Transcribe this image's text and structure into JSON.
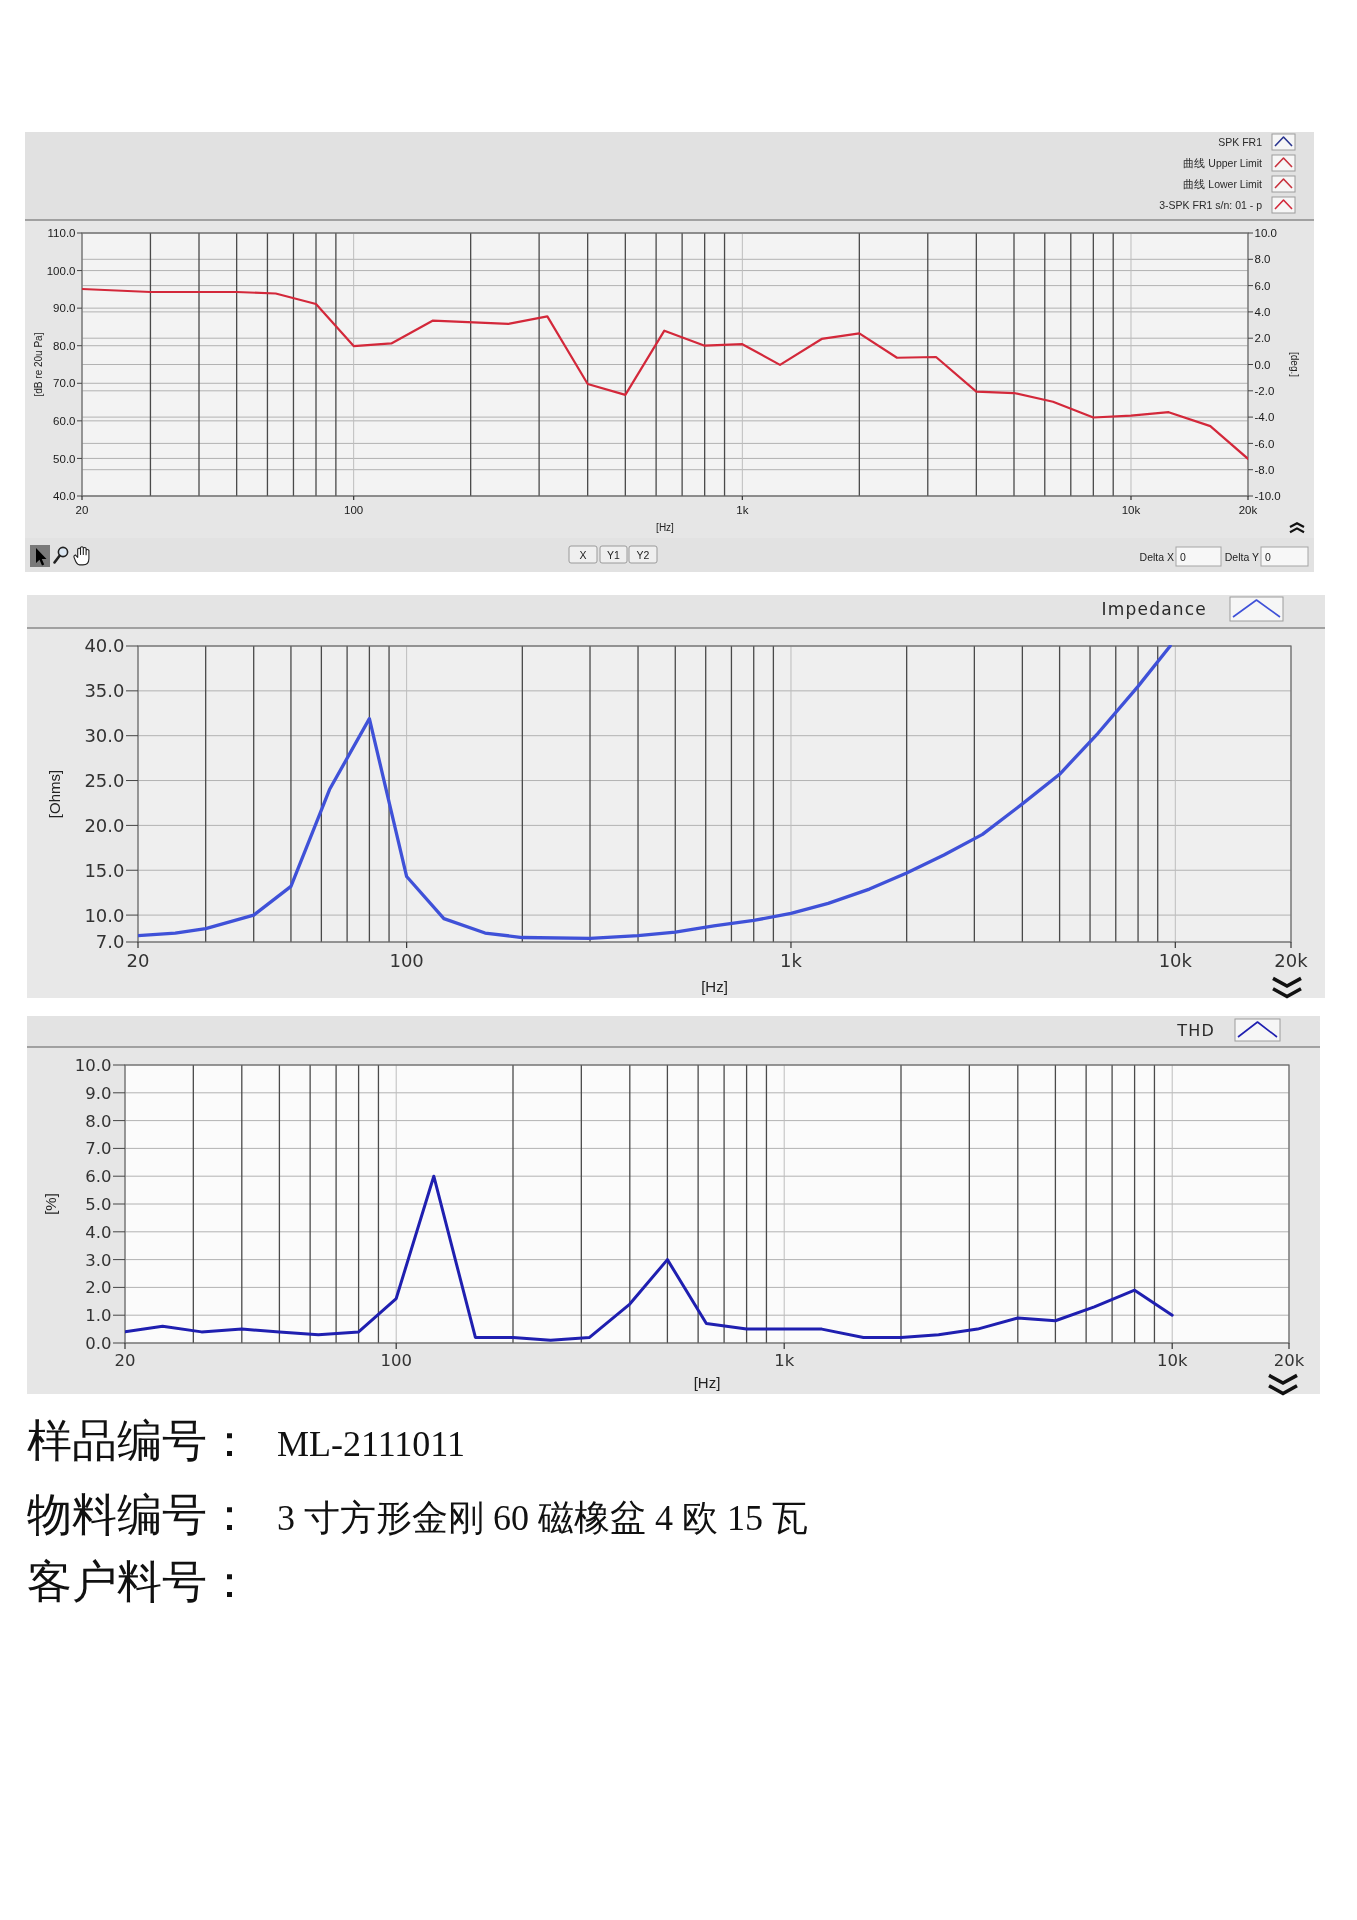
{
  "chart_data": [
    {
      "type": "line",
      "xlabel": "[Hz]",
      "ylabel": "[dB re 20u Pa]",
      "y2label": "[deg.]",
      "log": "x",
      "grid": true,
      "legend": "top right",
      "xlim": [
        20,
        20000
      ],
      "xticks": [
        {
          "value": 20,
          "label": "20"
        },
        {
          "value": 30,
          "label": null
        },
        {
          "value": 40,
          "label": null
        },
        {
          "value": 50,
          "label": null
        },
        {
          "value": 60,
          "label": null
        },
        {
          "value": 70,
          "label": null
        },
        {
          "value": 80,
          "label": null
        },
        {
          "value": 90,
          "label": null
        },
        {
          "value": 100,
          "label": "100"
        },
        {
          "value": 200,
          "label": null
        },
        {
          "value": 300,
          "label": null
        },
        {
          "value": 400,
          "label": null
        },
        {
          "value": 500,
          "label": null
        },
        {
          "value": 600,
          "label": null
        },
        {
          "value": 700,
          "label": null
        },
        {
          "value": 800,
          "label": null
        },
        {
          "value": 900,
          "label": null
        },
        {
          "value": 1000,
          "label": "1k"
        },
        {
          "value": 2000,
          "label": null
        },
        {
          "value": 3000,
          "label": null
        },
        {
          "value": 4000,
          "label": null
        },
        {
          "value": 5000,
          "label": null
        },
        {
          "value": 6000,
          "label": null
        },
        {
          "value": 7000,
          "label": null
        },
        {
          "value": 8000,
          "label": null
        },
        {
          "value": 9000,
          "label": null
        },
        {
          "value": 10000,
          "label": "10k"
        },
        {
          "value": 20000,
          "label": "20k"
        }
      ],
      "ylim": [
        40,
        110
      ],
      "yticks": [
        {
          "value": 40,
          "label": "40.0"
        },
        {
          "value": 50,
          "label": "50.0"
        },
        {
          "value": 60,
          "label": "60.0"
        },
        {
          "value": 70,
          "label": "70.0"
        },
        {
          "value": 80,
          "label": "80.0"
        },
        {
          "value": 90,
          "label": "90.0"
        },
        {
          "value": 100,
          "label": "100.0"
        },
        {
          "value": 110,
          "label": "110.0"
        }
      ],
      "y2lim": [
        -10,
        10
      ],
      "y2ticks": [
        {
          "value": -10,
          "label": "-10.0"
        },
        {
          "value": -8,
          "label": "-8.0"
        },
        {
          "value": -6,
          "label": "-6.0"
        },
        {
          "value": -4,
          "label": "-4.0"
        },
        {
          "value": -2,
          "label": "-2.0"
        },
        {
          "value": 0,
          "label": "0.0"
        },
        {
          "value": 2,
          "label": "2.0"
        },
        {
          "value": 4,
          "label": "4.0"
        },
        {
          "value": 6,
          "label": "6.0"
        },
        {
          "value": 8,
          "label": "8.0"
        },
        {
          "value": 10,
          "label": "10.0"
        }
      ],
      "series": [
        {
          "name": "SPK FR1",
          "color": "#2a3590"
        },
        {
          "name": "曲线 Upper Limit",
          "color": "#c8313c"
        },
        {
          "name": "曲线 Lower Limit",
          "color": "#c8313c"
        },
        {
          "name": "3-SPK FR1 s/n: 01 - p",
          "color": "#d3283a",
          "x": [
            20,
            30,
            50,
            63,
            80,
            100,
            125,
            160,
            250,
            315,
            400,
            500,
            630,
            800,
            1000,
            1250,
            1600,
            2000,
            2500,
            3150,
            4000,
            5000,
            6300,
            8000,
            10000,
            12500,
            16000,
            20000
          ],
          "values": [
            95.1,
            94.3,
            94.3,
            93.9,
            91.1,
            79.9,
            80.6,
            86.7,
            85.8,
            87.8,
            69.8,
            66.9,
            84.0,
            80.0,
            80.4,
            74.9,
            81.8,
            83.3,
            76.8,
            77.0,
            67.8,
            67.4,
            65.1,
            60.9,
            61.4,
            62.3,
            58.6,
            49.9
          ]
        }
      ],
      "annotations": [
        "X",
        "Y1",
        "Y2",
        "Delta X",
        "0",
        "Delta Y",
        "0"
      ]
    },
    {
      "type": "line",
      "xlabel": "[Hz]",
      "ylabel": "[Ohms]",
      "log": "x",
      "grid": true,
      "legend": "top right",
      "xlim": [
        20,
        20000
      ],
      "xticks": [
        {
          "value": 20,
          "label": "20"
        },
        {
          "value": 30,
          "label": null
        },
        {
          "value": 40,
          "label": null
        },
        {
          "value": 50,
          "label": null
        },
        {
          "value": 60,
          "label": null
        },
        {
          "value": 70,
          "label": null
        },
        {
          "value": 80,
          "label": null
        },
        {
          "value": 90,
          "label": null
        },
        {
          "value": 100,
          "label": "100"
        },
        {
          "value": 200,
          "label": null
        },
        {
          "value": 300,
          "label": null
        },
        {
          "value": 400,
          "label": null
        },
        {
          "value": 500,
          "label": null
        },
        {
          "value": 600,
          "label": null
        },
        {
          "value": 700,
          "label": null
        },
        {
          "value": 800,
          "label": null
        },
        {
          "value": 900,
          "label": null
        },
        {
          "value": 1000,
          "label": "1k"
        },
        {
          "value": 2000,
          "label": null
        },
        {
          "value": 3000,
          "label": null
        },
        {
          "value": 4000,
          "label": null
        },
        {
          "value": 5000,
          "label": null
        },
        {
          "value": 6000,
          "label": null
        },
        {
          "value": 7000,
          "label": null
        },
        {
          "value": 8000,
          "label": null
        },
        {
          "value": 9000,
          "label": null
        },
        {
          "value": 10000,
          "label": "10k"
        },
        {
          "value": 20000,
          "label": "20k"
        }
      ],
      "ylim": [
        7,
        40
      ],
      "yticks": [
        {
          "value": 7,
          "label": "7.0"
        },
        {
          "value": 10,
          "label": "10.0"
        },
        {
          "value": 15,
          "label": "15.0"
        },
        {
          "value": 20,
          "label": "20.0"
        },
        {
          "value": 25,
          "label": "25.0"
        },
        {
          "value": 30,
          "label": "30.0"
        },
        {
          "value": 35,
          "label": "35.0"
        },
        {
          "value": 40,
          "label": "40.0"
        }
      ],
      "series": [
        {
          "name": "Impedance",
          "color": "#3f51d8",
          "x": [
            20,
            25,
            30,
            40,
            50,
            63,
            80,
            100,
            125,
            160,
            200,
            300,
            400,
            500,
            630,
            800,
            1000,
            1250,
            1600,
            2000,
            2500,
            3150,
            4000,
            5000,
            6300,
            8000,
            9700
          ],
          "values": [
            7.7,
            8.0,
            8.5,
            10.0,
            13.2,
            24.0,
            31.9,
            14.3,
            9.6,
            8.0,
            7.5,
            7.4,
            7.7,
            8.1,
            8.8,
            9.4,
            10.2,
            11.3,
            12.9,
            14.7,
            16.7,
            19.0,
            22.4,
            25.7,
            30.3,
            35.5,
            40.0
          ]
        }
      ]
    },
    {
      "type": "line",
      "xlabel": "[Hz]",
      "ylabel": "[%]",
      "log": "x",
      "grid": true,
      "legend": "top right",
      "xlim": [
        20,
        20000
      ],
      "xticks": [
        {
          "value": 20,
          "label": "20"
        },
        {
          "value": 30,
          "label": null
        },
        {
          "value": 40,
          "label": null
        },
        {
          "value": 50,
          "label": null
        },
        {
          "value": 60,
          "label": null
        },
        {
          "value": 70,
          "label": null
        },
        {
          "value": 80,
          "label": null
        },
        {
          "value": 90,
          "label": null
        },
        {
          "value": 100,
          "label": "100"
        },
        {
          "value": 200,
          "label": null
        },
        {
          "value": 300,
          "label": null
        },
        {
          "value": 400,
          "label": null
        },
        {
          "value": 500,
          "label": null
        },
        {
          "value": 600,
          "label": null
        },
        {
          "value": 700,
          "label": null
        },
        {
          "value": 800,
          "label": null
        },
        {
          "value": 900,
          "label": null
        },
        {
          "value": 1000,
          "label": "1k"
        },
        {
          "value": 2000,
          "label": null
        },
        {
          "value": 3000,
          "label": null
        },
        {
          "value": 4000,
          "label": null
        },
        {
          "value": 5000,
          "label": null
        },
        {
          "value": 6000,
          "label": null
        },
        {
          "value": 7000,
          "label": null
        },
        {
          "value": 8000,
          "label": null
        },
        {
          "value": 9000,
          "label": null
        },
        {
          "value": 10000,
          "label": "10k"
        },
        {
          "value": 20000,
          "label": "20k"
        }
      ],
      "ylim": [
        0,
        10
      ],
      "yticks": [
        {
          "value": 0,
          "label": "0.0"
        },
        {
          "value": 1,
          "label": "1.0"
        },
        {
          "value": 2,
          "label": "2.0"
        },
        {
          "value": 3,
          "label": "3.0"
        },
        {
          "value": 4,
          "label": "4.0"
        },
        {
          "value": 5,
          "label": "5.0"
        },
        {
          "value": 6,
          "label": "6.0"
        },
        {
          "value": 7,
          "label": "7.0"
        },
        {
          "value": 8,
          "label": "8.0"
        },
        {
          "value": 9,
          "label": "9.0"
        },
        {
          "value": 10,
          "label": "10.0"
        }
      ],
      "series": [
        {
          "name": "THD",
          "color": "#1f1fb0",
          "x": [
            20,
            25,
            31.5,
            40,
            50,
            63,
            80,
            100,
            125,
            160,
            200,
            250,
            315,
            400,
            500,
            630,
            800,
            1000,
            1250,
            1600,
            2000,
            2500,
            3150,
            4000,
            5000,
            6300,
            8000,
            10000
          ],
          "values": [
            0.4,
            0.6,
            0.4,
            0.5,
            0.4,
            0.3,
            0.4,
            1.6,
            6.0,
            0.2,
            0.2,
            0.1,
            0.2,
            1.4,
            3.0,
            0.7,
            0.5,
            0.5,
            0.5,
            0.2,
            0.2,
            0.3,
            0.5,
            0.9,
            0.8,
            1.3,
            1.9,
            1.0
          ]
        }
      ]
    },
    {
      "type": "other",
      "annotations": [
        "样品编号：",
        "ML-2111011",
        "物料编号：",
        "3 寸方形金刚 60 磁橡盆 4 欧 15 瓦",
        "客户料号："
      ]
    }
  ]
}
